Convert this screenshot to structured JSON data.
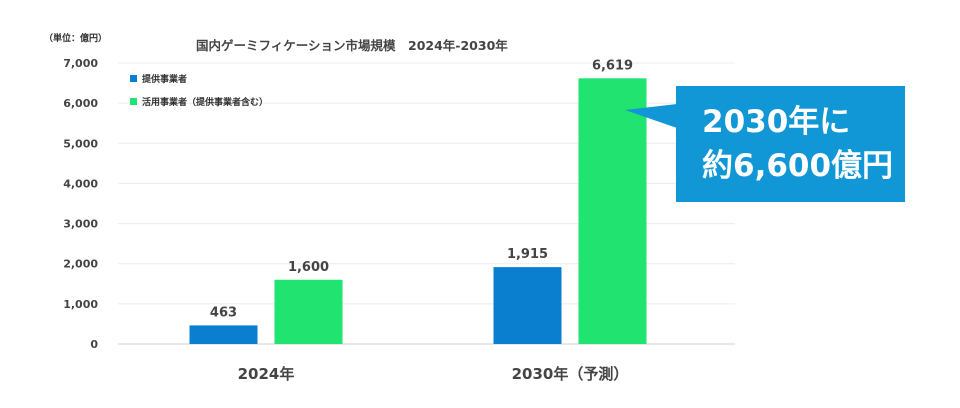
{
  "unit_label": "（単位：億円）",
  "callout": {
    "line1": "2030年に",
    "line2": "約6,600億円",
    "color": "#1196d6"
  },
  "chart_data": {
    "type": "bar",
    "title": "国内ゲーミフィケーション市場規模　2024年-2030年",
    "categories": [
      "2024年",
      "2030年（予測）"
    ],
    "ylim": [
      0,
      7000
    ],
    "yticks": [
      "0",
      "1,000",
      "2,000",
      "3,000",
      "4,000",
      "5,000",
      "6,000",
      "7,000"
    ],
    "grid": true,
    "legend_position": "top-left",
    "series": [
      {
        "name": "提供事業者",
        "color": "#0a7fd0",
        "values": [
          463,
          1915
        ],
        "labels": [
          "463",
          "1,915"
        ]
      },
      {
        "name": "活用事業者（提供事業者含む）",
        "color": "#21e36f",
        "values": [
          1600,
          6619
        ],
        "labels": [
          "1,600",
          "6,619"
        ]
      }
    ]
  }
}
